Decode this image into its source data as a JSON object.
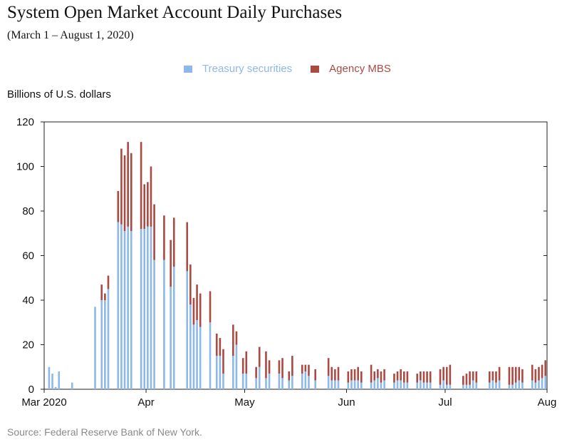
{
  "colors": {
    "treasury": "#8db8e8",
    "mbs": "#a94a43",
    "axis": "#222222",
    "source": "#8a8a8a"
  },
  "chart_data": {
    "type": "bar",
    "stacked": true,
    "title": "System Open Market Account Daily Purchases",
    "subtitle": "(March 1 – August 1, 2020)",
    "ylabel": "Billions of U.S. dollars",
    "ylim": [
      0,
      120
    ],
    "yticks": [
      0,
      20,
      40,
      60,
      80,
      100,
      120
    ],
    "xlim_days": [
      0,
      153
    ],
    "xticks": [
      {
        "label": "Mar 2020",
        "day": 0
      },
      {
        "label": "Apr",
        "day": 31
      },
      {
        "label": "May",
        "day": 61
      },
      {
        "label": "Jun",
        "day": 92
      },
      {
        "label": "Jul",
        "day": 122
      },
      {
        "label": "Aug",
        "day": 153
      }
    ],
    "legend_position": "top-center",
    "series": [
      {
        "name": "Treasury securities",
        "color": "#8db8e8"
      },
      {
        "name": "Agency MBS",
        "color": "#a94a43"
      }
    ],
    "x": [
      "2020-03-02",
      "2020-03-03",
      "2020-03-04",
      "2020-03-05",
      "2020-03-06",
      "2020-03-09",
      "2020-03-10",
      "2020-03-11",
      "2020-03-12",
      "2020-03-13",
      "2020-03-16",
      "2020-03-17",
      "2020-03-18",
      "2020-03-19",
      "2020-03-20",
      "2020-03-23",
      "2020-03-24",
      "2020-03-25",
      "2020-03-26",
      "2020-03-27",
      "2020-03-30",
      "2020-03-31",
      "2020-04-01",
      "2020-04-02",
      "2020-04-03",
      "2020-04-06",
      "2020-04-07",
      "2020-04-08",
      "2020-04-09",
      "2020-04-13",
      "2020-04-14",
      "2020-04-15",
      "2020-04-16",
      "2020-04-17",
      "2020-04-20",
      "2020-04-21",
      "2020-04-22",
      "2020-04-23",
      "2020-04-24",
      "2020-04-27",
      "2020-04-28",
      "2020-04-29",
      "2020-04-30",
      "2020-05-01",
      "2020-05-04",
      "2020-05-05",
      "2020-05-06",
      "2020-05-07",
      "2020-05-08",
      "2020-05-11",
      "2020-05-12",
      "2020-05-13",
      "2020-05-14",
      "2020-05-15",
      "2020-05-18",
      "2020-05-19",
      "2020-05-20",
      "2020-05-21",
      "2020-05-22",
      "2020-05-26",
      "2020-05-27",
      "2020-05-28",
      "2020-05-29",
      "2020-06-01",
      "2020-06-02",
      "2020-06-03",
      "2020-06-04",
      "2020-06-05",
      "2020-06-08",
      "2020-06-09",
      "2020-06-10",
      "2020-06-11",
      "2020-06-12",
      "2020-06-15",
      "2020-06-16",
      "2020-06-17",
      "2020-06-18",
      "2020-06-19",
      "2020-06-22",
      "2020-06-23",
      "2020-06-24",
      "2020-06-25",
      "2020-06-26",
      "2020-06-29",
      "2020-06-30",
      "2020-07-01",
      "2020-07-02",
      "2020-07-06",
      "2020-07-07",
      "2020-07-08",
      "2020-07-09",
      "2020-07-10",
      "2020-07-13",
      "2020-07-14",
      "2020-07-15",
      "2020-07-16",
      "2020-07-17",
      "2020-07-20",
      "2020-07-21",
      "2020-07-22",
      "2020-07-23",
      "2020-07-24",
      "2020-07-27",
      "2020-07-28",
      "2020-07-29",
      "2020-07-30",
      "2020-07-31"
    ],
    "treasury": [
      10,
      7,
      1,
      8,
      0,
      3,
      0,
      0,
      0,
      0,
      37,
      0,
      40,
      40,
      45,
      75,
      74,
      71,
      73,
      71,
      72,
      72,
      73,
      73,
      58,
      58,
      0,
      46,
      55,
      53,
      38,
      29,
      31,
      28,
      30,
      0,
      15,
      15,
      7,
      15,
      20,
      0,
      7,
      7,
      5,
      10,
      0,
      5,
      7,
      7,
      5,
      0,
      4,
      6,
      7,
      8,
      6,
      0,
      4,
      6,
      4,
      4,
      4,
      3,
      4,
      4,
      4,
      3,
      3,
      4,
      5,
      3,
      4,
      3,
      4,
      4,
      3,
      3,
      3,
      4,
      3,
      3,
      3,
      2,
      4,
      2,
      2,
      2,
      2,
      2,
      4,
      3,
      0,
      3,
      4,
      3,
      4,
      2,
      2,
      3,
      4,
      3,
      4,
      3,
      4,
      5,
      6
    ],
    "mbs": [
      0,
      0,
      0,
      0,
      0,
      0,
      0,
      0,
      0,
      0,
      0,
      0,
      7,
      3,
      6,
      14,
      34,
      34,
      38,
      35,
      39,
      20,
      20,
      27,
      25,
      20,
      0,
      21,
      22,
      22,
      18,
      12,
      16,
      15,
      14,
      0,
      10,
      8,
      11,
      14,
      6,
      0,
      7,
      10,
      5,
      9,
      0,
      12,
      6,
      6,
      9,
      0,
      4,
      9,
      4,
      3,
      5,
      0,
      5,
      8,
      6,
      5,
      6,
      5,
      5,
      5,
      6,
      5,
      8,
      4,
      4,
      5,
      5,
      4,
      4,
      5,
      5,
      5,
      4,
      4,
      5,
      5,
      5,
      7,
      6,
      8,
      9,
      4,
      5,
      6,
      4,
      5,
      0,
      5,
      4,
      5,
      6,
      8,
      8,
      7,
      6,
      6,
      7,
      6,
      6,
      6,
      7
    ]
  },
  "source_text": "Source: Federal Reserve Bank of New York."
}
